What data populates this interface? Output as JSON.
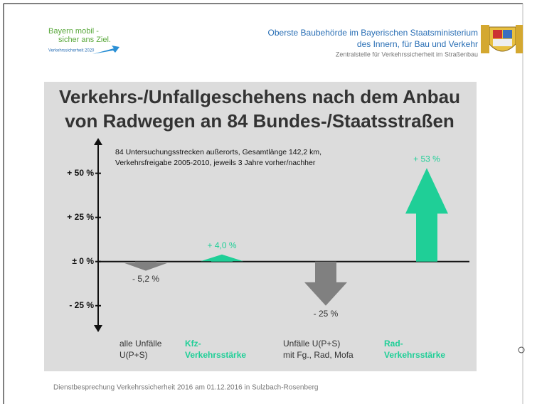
{
  "header": {
    "logo_lines": [
      "Bayern mobil -",
      "sicher ans Ziel."
    ],
    "logo_sub": "Verkehrssicherheit 2020",
    "authority_lines": [
      "Oberste Baubehörde im Bayerischen Staatsministerium",
      "des Innern, für Bau und Verkehr"
    ],
    "authority_sub": "Zentralstelle für Verkehrssicherheit im Straßenbau"
  },
  "chart_data": {
    "type": "arrow",
    "title_lines": [
      "Verkehrs-/Unfallgeschehens nach dem Anbau",
      "von Radwegen an 84 Bundes-/Staatsstraßen"
    ],
    "annotation_lines": [
      "84 Untersuchungsstrecken außerorts, Gesamtlänge 142,2 km,",
      "Verkehrsfreigabe 2005-2010, jeweils 3 Jahre vorher/nachher"
    ],
    "categories": [
      [
        "alle Unfälle",
        "U(P+S)"
      ],
      [
        "Kfz-",
        "Verkehrsstärke"
      ],
      [
        "Unfälle U(P+S)",
        "mit Fg., Rad, Mofa"
      ],
      [
        "Rad-",
        "Verkehrsstärke"
      ]
    ],
    "values": [
      -5.2,
      4.0,
      -25,
      53
    ],
    "value_labels": [
      "- 5,2 %",
      "+ 4,0 %",
      "- 25 %",
      "+ 53 %"
    ],
    "colors": [
      "#808080",
      "#1fcf97",
      "#808080",
      "#1fcf97"
    ],
    "label_colors": [
      "#333333",
      "#1fcf97",
      "#333333",
      "#1fcf97"
    ],
    "ylim": [
      -40,
      70
    ],
    "yticks": [
      {
        "value": -25,
        "label": "- 25 %"
      },
      {
        "value": 0,
        "label": "± 0 %"
      },
      {
        "value": 25,
        "label": "+ 25 %"
      },
      {
        "value": 50,
        "label": "+ 50 %"
      }
    ]
  },
  "footer": "Dienstbesprechung Verkehrssicherheit 2016 am 01.12.2016 in Sulzbach-Rosenberg"
}
